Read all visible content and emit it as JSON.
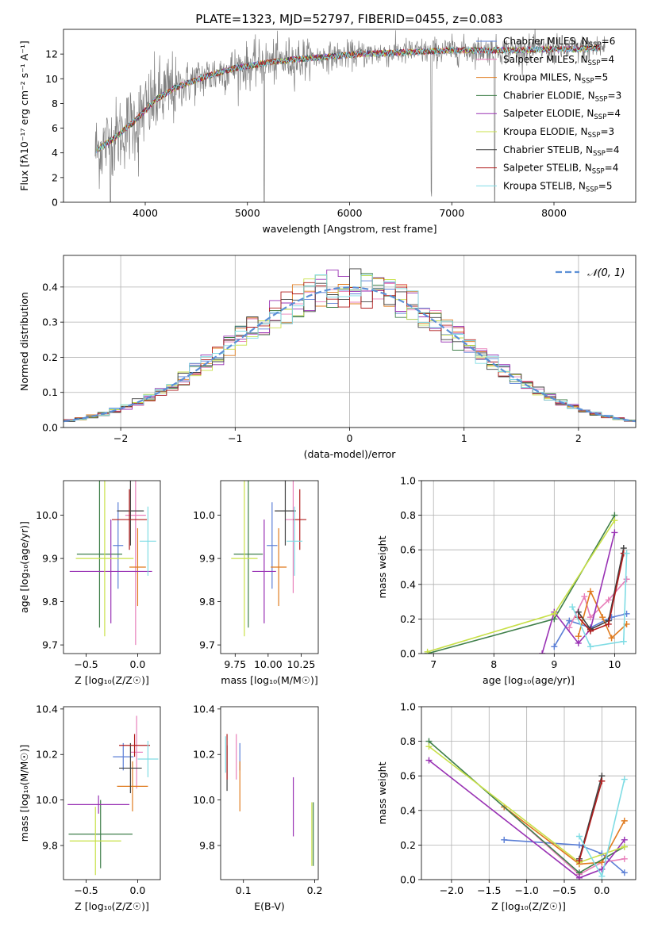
{
  "figure": {
    "title": "PLATE=1323, MJD=52797, FIBERID=0455, z=0.083"
  },
  "series_colors": {
    "Chabrier MILES": "#5b7fd6",
    "Salpeter MILES": "#e87fba",
    "Kroupa MILES": "#e07b1f",
    "Chabrier ELODIE": "#3f7f4a",
    "Salpeter ELODIE": "#9932b4",
    "Kroupa ELODIE": "#c8e048",
    "Chabrier STELIB": "#404040",
    "Salpeter STELIB": "#b01c1c",
    "Kroupa STELIB": "#7fdce4",
    "data": "#808080",
    "normal": "#5b8fd6"
  },
  "chart_data": [
    {
      "id": "spectrum",
      "type": "line",
      "xlabel": "wavelength [Angstrom, rest frame]",
      "ylabel": "Flux [fλ10⁻¹⁷ erg cm⁻² s⁻¹ A⁻¹]",
      "xlim": [
        3200,
        8800
      ],
      "ylim": [
        0,
        14
      ],
      "xticks": [
        4000,
        5000,
        6000,
        7000,
        8000
      ],
      "yticks": [
        0,
        2,
        4,
        6,
        8,
        10,
        12
      ],
      "legend_position": "top-right",
      "legend": [
        {
          "name": "Chabrier MILES",
          "n_ssp": 6
        },
        {
          "name": "Salpeter MILES",
          "n_ssp": 4
        },
        {
          "name": "Kroupa MILES",
          "n_ssp": 5
        },
        {
          "name": "Chabrier ELODIE",
          "n_ssp": 3
        },
        {
          "name": "Salpeter ELODIE",
          "n_ssp": 4
        },
        {
          "name": "Kroupa ELODIE",
          "n_ssp": 3
        },
        {
          "name": "Chabrier STELIB",
          "n_ssp": 4
        },
        {
          "name": "Salpeter STELIB",
          "n_ssp": 4
        },
        {
          "name": "Kroupa STELIB",
          "n_ssp": 5
        }
      ],
      "continuum": {
        "wavelength": [
          3520,
          3700,
          3900,
          4100,
          4300,
          4600,
          4900,
          5200,
          5500,
          5800,
          6100,
          6400,
          6700,
          7000,
          7300,
          7600,
          7900,
          8200,
          8500
        ],
        "flux": [
          4.2,
          5.2,
          6.6,
          8.3,
          9.3,
          10.2,
          10.9,
          11.3,
          11.6,
          11.8,
          12.0,
          12.1,
          12.2,
          12.3,
          12.3,
          12.3,
          12.4,
          12.4,
          12.5
        ]
      },
      "absorption_lines": [
        {
          "wavelength": 3660,
          "depth": 3.5
        },
        {
          "wavelength": 3930,
          "depth": 1.5
        },
        {
          "wavelength": 4300,
          "depth": 1.0
        },
        {
          "wavelength": 5165,
          "depth": 11.0
        },
        {
          "wavelength": 6800,
          "depth": 12.0
        },
        {
          "wavelength": 7420,
          "depth": 12.0
        }
      ]
    },
    {
      "id": "residuals",
      "type": "histogram",
      "xlabel": "(data-model)/error",
      "ylabel": "Normed distribution",
      "xlim": [
        -2.5,
        2.5
      ],
      "ylim": [
        0,
        0.49
      ],
      "xticks": [
        -2,
        -1,
        0,
        1,
        2
      ],
      "yticks": [
        0.0,
        0.1,
        0.2,
        0.3,
        0.4
      ],
      "bin_width": 0.1,
      "legend": [
        {
          "name": "𝒩(0, 1)"
        }
      ],
      "legend_position": "top-right",
      "grid": true
    },
    {
      "id": "age-vs-Z",
      "type": "errorbar",
      "xlabel": "Z [log₁₀(Z/Z☉)]",
      "ylabel": "age  [log₁₀(age/yr)]",
      "xlim": [
        -0.72,
        0.22
      ],
      "ylim": [
        9.68,
        10.08
      ],
      "xticks": [
        -0.5,
        0.0
      ],
      "yticks": [
        9.7,
        9.8,
        9.9,
        10.0
      ],
      "points": [
        {
          "series": "Chabrier MILES",
          "x": -0.19,
          "y": 9.93,
          "xerr": 0.05,
          "yerr": 0.1
        },
        {
          "series": "Salpeter MILES",
          "x": -0.02,
          "y": 10.0,
          "xerr": 0.1,
          "yerr": 0.3
        },
        {
          "series": "Kroupa MILES",
          "x": 0.0,
          "y": 9.88,
          "xerr": 0.08,
          "yerr": 0.09
        },
        {
          "series": "Chabrier ELODIE",
          "x": -0.37,
          "y": 9.91,
          "xerr": 0.22,
          "yerr": 0.17
        },
        {
          "series": "Salpeter ELODIE",
          "x": -0.26,
          "y": 9.87,
          "xerr": 0.4,
          "yerr": 0.12
        },
        {
          "series": "Kroupa ELODIE",
          "x": -0.32,
          "y": 9.9,
          "xerr": 0.28,
          "yerr": 0.18
        },
        {
          "series": "Chabrier STELIB",
          "x": -0.07,
          "y": 10.01,
          "xerr": 0.13,
          "yerr": 0.08
        },
        {
          "series": "Salpeter STELIB",
          "x": -0.08,
          "y": 9.99,
          "xerr": 0.17,
          "yerr": 0.07
        },
        {
          "series": "Kroupa STELIB",
          "x": 0.1,
          "y": 9.94,
          "xerr": 0.08,
          "yerr": 0.08
        }
      ]
    },
    {
      "id": "age-vs-mass",
      "type": "errorbar",
      "xlabel": "mass [log₁₀(M/M☉)]",
      "ylabel": "",
      "xlim": [
        9.64,
        10.38
      ],
      "ylim": [
        9.68,
        10.08
      ],
      "xticks": [
        9.75,
        10.0,
        10.25
      ],
      "yticks": [
        9.7,
        9.8,
        9.9,
        10.0
      ],
      "points": [
        {
          "series": "Chabrier MILES",
          "x": 10.03,
          "y": 9.93,
          "xerr": 0.04,
          "yerr": 0.1
        },
        {
          "series": "Salpeter MILES",
          "x": 10.19,
          "y": 9.99,
          "xerr": 0.06,
          "yerr": 0.17
        },
        {
          "series": "Kroupa MILES",
          "x": 10.08,
          "y": 9.88,
          "xerr": 0.06,
          "yerr": 0.09
        },
        {
          "series": "Chabrier ELODIE",
          "x": 9.85,
          "y": 9.91,
          "xerr": 0.11,
          "yerr": 0.17
        },
        {
          "series": "Salpeter ELODIE",
          "x": 9.97,
          "y": 9.87,
          "xerr": 0.09,
          "yerr": 0.12
        },
        {
          "series": "Kroupa ELODIE",
          "x": 9.82,
          "y": 9.9,
          "xerr": 0.1,
          "yerr": 0.18
        },
        {
          "series": "Chabrier STELIB",
          "x": 10.13,
          "y": 10.01,
          "xerr": 0.08,
          "yerr": 0.08
        },
        {
          "series": "Salpeter STELIB",
          "x": 10.24,
          "y": 9.99,
          "xerr": 0.05,
          "yerr": 0.07
        },
        {
          "series": "Kroupa STELIB",
          "x": 10.2,
          "y": 9.94,
          "xerr": 0.06,
          "yerr": 0.08
        }
      ]
    },
    {
      "id": "weight-vs-age",
      "type": "line",
      "xlabel": "age  [log₁₀(age/yr)]",
      "ylabel": "mass weight",
      "xlim": [
        6.8,
        10.35
      ],
      "ylim": [
        0,
        1
      ],
      "xticks": [
        7,
        8,
        9,
        10
      ],
      "yticks": [
        0.0,
        0.2,
        0.4,
        0.6,
        0.8,
        1.0
      ],
      "grid": true,
      "series": [
        {
          "series": "Chabrier MILES",
          "x": [
            9.0,
            9.25,
            9.6,
            9.95,
            10.2
          ],
          "y": [
            0.04,
            0.19,
            0.15,
            0.21,
            0.23
          ]
        },
        {
          "series": "Salpeter MILES",
          "x": [
            9.25,
            9.5,
            9.6,
            9.9,
            10.2
          ],
          "y": [
            0.15,
            0.33,
            0.21,
            0.31,
            0.43
          ]
        },
        {
          "series": "Kroupa MILES",
          "x": [
            9.4,
            9.6,
            9.8,
            9.95,
            10.2
          ],
          "y": [
            0.1,
            0.36,
            0.21,
            0.09,
            0.17
          ]
        },
        {
          "series": "Chabrier ELODIE",
          "x": [
            6.9,
            9.0,
            10.0
          ],
          "y": [
            0.0,
            0.2,
            0.8
          ]
        },
        {
          "series": "Salpeter ELODIE",
          "x": [
            8.8,
            9.0,
            9.4,
            9.6,
            10.0
          ],
          "y": [
            0.0,
            0.24,
            0.06,
            0.14,
            0.7
          ]
        },
        {
          "series": "Kroupa ELODIE",
          "x": [
            6.9,
            9.0,
            10.0
          ],
          "y": [
            0.01,
            0.23,
            0.77
          ]
        },
        {
          "series": "Chabrier STELIB",
          "x": [
            9.4,
            9.6,
            9.9,
            10.15
          ],
          "y": [
            0.24,
            0.14,
            0.19,
            0.61
          ]
        },
        {
          "series": "Salpeter STELIB",
          "x": [
            9.4,
            9.6,
            9.9,
            10.15
          ],
          "y": [
            0.21,
            0.13,
            0.17,
            0.58
          ]
        },
        {
          "series": "Kroupa STELIB",
          "x": [
            9.3,
            9.6,
            10.15,
            10.2
          ],
          "y": [
            0.27,
            0.04,
            0.07,
            0.58
          ]
        }
      ]
    },
    {
      "id": "mass-vs-Z",
      "type": "errorbar",
      "xlabel": "Z [log₁₀(Z/Z☉)]",
      "ylabel": "mass [log₁₀(M/M☉)]",
      "xlim": [
        -0.72,
        0.22
      ],
      "ylim": [
        9.65,
        10.41
      ],
      "xticks": [
        -0.5,
        0.0
      ],
      "yticks": [
        9.8,
        10.0,
        10.2,
        10.4
      ],
      "points": [
        {
          "series": "Chabrier MILES",
          "x": -0.14,
          "y": 10.19,
          "xerr": 0.1,
          "yerr": 0.06
        },
        {
          "series": "Salpeter MILES",
          "x": -0.01,
          "y": 10.21,
          "xerr": 0.06,
          "yerr": 0.16
        },
        {
          "series": "Kroupa MILES",
          "x": -0.05,
          "y": 10.06,
          "xerr": 0.15,
          "yerr": 0.11
        },
        {
          "series": "Chabrier ELODIE",
          "x": -0.36,
          "y": 9.85,
          "xerr": 0.31,
          "yerr": 0.15
        },
        {
          "series": "Salpeter ELODIE",
          "x": -0.38,
          "y": 9.98,
          "xerr": 0.3,
          "yerr": 0.04
        },
        {
          "series": "Kroupa ELODIE",
          "x": -0.41,
          "y": 9.82,
          "xerr": 0.25,
          "yerr": 0.15
        },
        {
          "series": "Chabrier STELIB",
          "x": -0.07,
          "y": 10.14,
          "xerr": 0.11,
          "yerr": 0.11
        },
        {
          "series": "Salpeter STELIB",
          "x": -0.03,
          "y": 10.24,
          "xerr": 0.15,
          "yerr": 0.05
        },
        {
          "series": "Kroupa STELIB",
          "x": 0.1,
          "y": 10.18,
          "xerr": 0.1,
          "yerr": 0.08
        }
      ]
    },
    {
      "id": "mass-vs-EBV",
      "type": "errorbar",
      "xlabel": "E(B-V)",
      "ylabel": "",
      "xlim": [
        0.068,
        0.205
      ],
      "ylim": [
        9.65,
        10.41
      ],
      "xticks": [
        0.1,
        0.2
      ],
      "yticks": [
        9.8,
        10.0,
        10.2,
        10.4
      ],
      "points": [
        {
          "series": "Chabrier MILES",
          "x": 0.095,
          "y": 10.19,
          "xerr": 0.0,
          "yerr": 0.06
        },
        {
          "series": "Salpeter MILES",
          "x": 0.09,
          "y": 10.19,
          "xerr": 0.0,
          "yerr": 0.1
        },
        {
          "series": "Kroupa MILES",
          "x": 0.095,
          "y": 10.06,
          "xerr": 0.0,
          "yerr": 0.11
        },
        {
          "series": "Chabrier ELODIE",
          "x": 0.198,
          "y": 9.85,
          "xerr": 0.0,
          "yerr": 0.14
        },
        {
          "series": "Salpeter ELODIE",
          "x": 0.17,
          "y": 9.97,
          "xerr": 0.0,
          "yerr": 0.13
        },
        {
          "series": "Kroupa ELODIE",
          "x": 0.196,
          "y": 9.85,
          "xerr": 0.0,
          "yerr": 0.14
        },
        {
          "series": "Chabrier STELIB",
          "x": 0.077,
          "y": 10.14,
          "xerr": 0.0,
          "yerr": 0.1
        },
        {
          "series": "Salpeter STELIB",
          "x": 0.077,
          "y": 10.19,
          "xerr": 0.0,
          "yerr": 0.1
        },
        {
          "series": "Kroupa STELIB",
          "x": 0.075,
          "y": 10.2,
          "xerr": 0.0,
          "yerr": 0.08
        }
      ]
    },
    {
      "id": "weight-vs-Z",
      "type": "line",
      "xlabel": "Z [log₁₀(Z/Z☉)]",
      "ylabel": "mass weight",
      "xlim": [
        -2.4,
        0.45
      ],
      "ylim": [
        0,
        1
      ],
      "xticks": [
        -2.0,
        -1.5,
        -1.0,
        -0.5,
        0.0
      ],
      "yticks": [
        0.0,
        0.2,
        0.4,
        0.6,
        0.8,
        1.0
      ],
      "grid": true,
      "series": [
        {
          "series": "Chabrier MILES",
          "x": [
            -1.3,
            -0.3,
            0.0,
            0.3
          ],
          "y": [
            0.23,
            0.2,
            0.15,
            0.04
          ]
        },
        {
          "series": "Salpeter MILES",
          "x": [
            -1.3,
            -0.3,
            0.0,
            0.3
          ],
          "y": [
            0.42,
            0.03,
            0.1,
            0.12
          ]
        },
        {
          "series": "Kroupa MILES",
          "x": [
            -1.3,
            -0.3,
            0.0,
            0.3
          ],
          "y": [
            0.42,
            0.09,
            0.1,
            0.34
          ]
        },
        {
          "series": "Chabrier ELODIE",
          "x": [
            -2.3,
            -0.3,
            0.3
          ],
          "y": [
            0.8,
            0.04,
            0.19
          ]
        },
        {
          "series": "Salpeter ELODIE",
          "x": [
            -2.3,
            -0.3,
            0.0,
            0.3
          ],
          "y": [
            0.69,
            0.01,
            0.06,
            0.23
          ]
        },
        {
          "series": "Kroupa ELODIE",
          "x": [
            -2.3,
            -0.3,
            0.3
          ],
          "y": [
            0.77,
            0.1,
            0.19
          ]
        },
        {
          "series": "Chabrier STELIB",
          "x": [
            -0.3,
            0.0
          ],
          "y": [
            0.12,
            0.6
          ]
        },
        {
          "series": "Salpeter STELIB",
          "x": [
            -0.3,
            0.0
          ],
          "y": [
            0.11,
            0.57
          ]
        },
        {
          "series": "Kroupa STELIB",
          "x": [
            -0.3,
            0.0,
            0.3
          ],
          "y": [
            0.25,
            0.02,
            0.58
          ]
        }
      ]
    }
  ]
}
